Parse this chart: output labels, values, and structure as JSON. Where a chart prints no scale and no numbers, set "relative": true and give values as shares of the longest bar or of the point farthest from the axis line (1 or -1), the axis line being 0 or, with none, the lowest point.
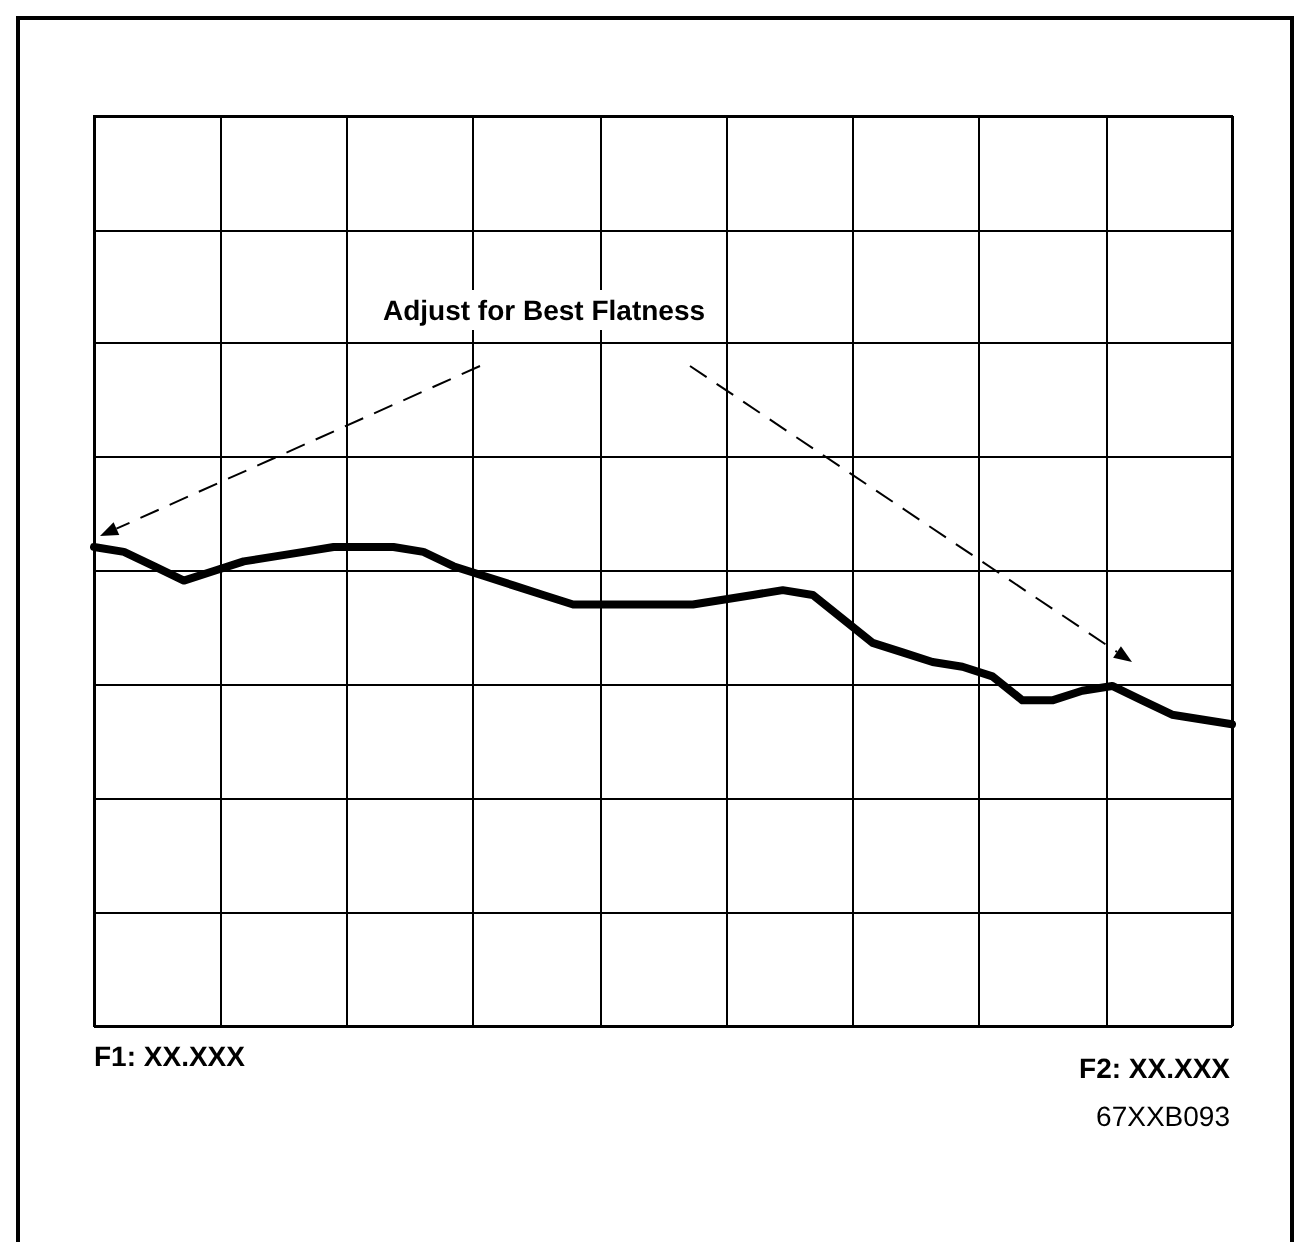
{
  "chart_data": {
    "type": "line",
    "relative": true,
    "grid": true,
    "marker": "none",
    "line_style": "solid",
    "categories": [
      null,
      null,
      null,
      null,
      null,
      null,
      null,
      null,
      null,
      null,
      null,
      null,
      null,
      null,
      null,
      null,
      null,
      null,
      null,
      null,
      null,
      null,
      null,
      null,
      null,
      null,
      null,
      null,
      null,
      null,
      null,
      null,
      null,
      null,
      null,
      null,
      null,
      null,
      null
    ],
    "series": [
      {
        "color": "#000000",
        "values": [
          1.0,
          0.99,
          0.96,
          0.93,
          0.95,
          0.97,
          0.98,
          0.99,
          1.0,
          1.0,
          1.0,
          0.99,
          0.96,
          0.94,
          0.92,
          0.9,
          0.88,
          0.88,
          0.88,
          0.88,
          0.88,
          0.89,
          0.9,
          0.91,
          0.9,
          0.85,
          0.8,
          0.78,
          0.76,
          0.75,
          0.73,
          0.68,
          0.68,
          0.7,
          0.71,
          0.68,
          0.65,
          0.64,
          0.63
        ]
      }
    ],
    "annotations": [
      "Adjust for Best Flatness",
      "F1: XX.XXX",
      "F2: XX.XXX",
      "67XXB093"
    ]
  }
}
